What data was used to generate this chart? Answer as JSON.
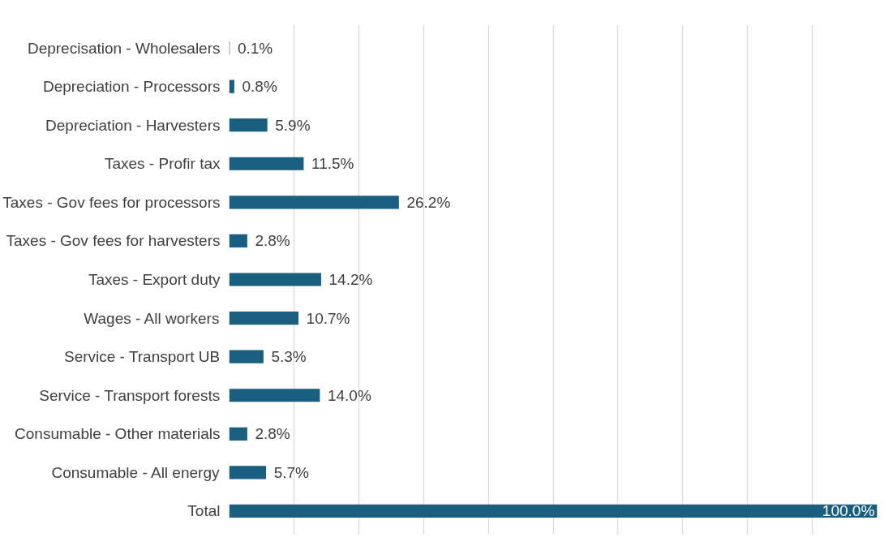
{
  "chart_data": {
    "type": "bar",
    "orientation": "horizontal",
    "categories": [
      "Deprecisation - Wholesalers",
      "Depreciation - Processors",
      "Depreciation - Harvesters",
      "Taxes - Profir tax",
      "Taxes - Gov fees for processors",
      "Taxes - Gov fees for harvesters",
      "Taxes - Export duty",
      "Wages - All workers",
      "Service - Transport UB",
      "Service - Transport forests",
      "Consumable - Other materials",
      "Consumable - All energy",
      "Total"
    ],
    "values": [
      0.1,
      0.8,
      5.9,
      11.5,
      26.2,
      2.8,
      14.2,
      10.7,
      5.3,
      14.0,
      2.8,
      5.7,
      100.0
    ],
    "value_labels": [
      "0.1%",
      "0.8%",
      "5.9%",
      "11.5%",
      "26.2%",
      "2.8%",
      "14.2%",
      "10.7%",
      "5.3%",
      "14.0%",
      "2.8%",
      "5.7%",
      "100.0%"
    ],
    "color": "#1a5e80",
    "xlim": [
      0,
      100
    ],
    "grid": "x",
    "tick_labels": "y"
  }
}
